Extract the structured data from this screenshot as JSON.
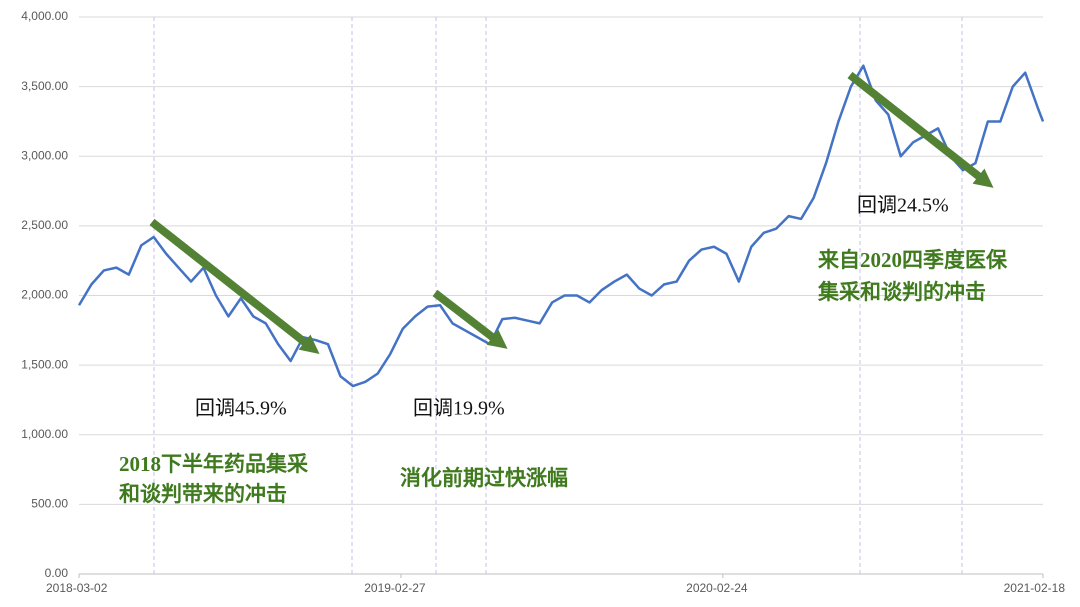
{
  "chart_data": {
    "type": "line",
    "color": "#4472c4",
    "grid": true,
    "xlim": [
      "2018-03-02",
      "2021-02-18"
    ],
    "xticks": [
      "2018-03-02",
      "2019-02-27",
      "2020-02-24",
      "2021-02-18"
    ],
    "ylim": [
      0,
      4000
    ],
    "yticks": [
      {
        "value": 0,
        "label": "0.00"
      },
      {
        "value": 500,
        "label": "500.00"
      },
      {
        "value": 1000,
        "label": "1,000.00"
      },
      {
        "value": 1500,
        "label": "1,500.00"
      },
      {
        "value": 2000,
        "label": "2,000.00"
      },
      {
        "value": 2500,
        "label": "2,500.00"
      },
      {
        "value": 3000,
        "label": "3,000.00"
      },
      {
        "value": 3500,
        "label": "3,500.00"
      },
      {
        "value": 4000,
        "label": "4,000.00"
      }
    ],
    "x": [
      "2018-03-02",
      "2018-03-16",
      "2018-03-30",
      "2018-04-13",
      "2018-04-27",
      "2018-05-11",
      "2018-05-25",
      "2018-06-08",
      "2018-06-22",
      "2018-07-06",
      "2018-07-20",
      "2018-08-03",
      "2018-08-17",
      "2018-08-31",
      "2018-09-14",
      "2018-09-28",
      "2018-10-12",
      "2018-10-26",
      "2018-11-09",
      "2018-11-23",
      "2018-12-07",
      "2018-12-21",
      "2019-01-04",
      "2019-01-18",
      "2019-02-01",
      "2019-02-15",
      "2019-03-01",
      "2019-03-15",
      "2019-03-29",
      "2019-04-12",
      "2019-04-26",
      "2019-05-10",
      "2019-05-24",
      "2019-06-07",
      "2019-06-21",
      "2019-07-05",
      "2019-07-19",
      "2019-08-02",
      "2019-08-16",
      "2019-08-30",
      "2019-09-13",
      "2019-09-27",
      "2019-10-11",
      "2019-10-25",
      "2019-11-08",
      "2019-11-22",
      "2019-12-06",
      "2019-12-20",
      "2020-01-03",
      "2020-01-17",
      "2020-01-31",
      "2020-02-14",
      "2020-02-28",
      "2020-03-13",
      "2020-03-27",
      "2020-04-10",
      "2020-04-24",
      "2020-05-08",
      "2020-05-22",
      "2020-06-05",
      "2020-06-19",
      "2020-07-03",
      "2020-07-17",
      "2020-07-31",
      "2020-08-14",
      "2020-08-28",
      "2020-09-11",
      "2020-09-25",
      "2020-10-09",
      "2020-10-23",
      "2020-11-06",
      "2020-11-20",
      "2020-12-04",
      "2020-12-18",
      "2021-01-01",
      "2021-01-15",
      "2021-01-29",
      "2021-02-12",
      "2021-02-18"
    ],
    "values": [
      1930,
      2080,
      2180,
      2200,
      2150,
      2360,
      2420,
      2300,
      2200,
      2100,
      2200,
      2000,
      1850,
      1980,
      1850,
      1800,
      1650,
      1530,
      1700,
      1680,
      1650,
      1420,
      1350,
      1380,
      1440,
      1580,
      1760,
      1850,
      1920,
      1930,
      1800,
      1750,
      1700,
      1650,
      1830,
      1840,
      1820,
      1800,
      1950,
      2000,
      2000,
      1950,
      2040,
      2100,
      2150,
      2050,
      2000,
      2080,
      2100,
      2250,
      2330,
      2350,
      2300,
      2100,
      2350,
      2450,
      2480,
      2570,
      2550,
      2700,
      2950,
      3250,
      3500,
      3650,
      3400,
      3300,
      3000,
      3100,
      3150,
      3200,
      3000,
      2900,
      2950,
      3250,
      3250,
      3500,
      3600,
      3350,
      3250
    ]
  },
  "annotations": {
    "pullback_1": "回调45.9%",
    "pullback_2": "回调19.9%",
    "pullback_3": "回调24.5%",
    "reason_1": [
      "2018下半年药品集采",
      "和谈判带来的冲击"
    ],
    "reason_2": "消化前期过快涨幅",
    "reason_3": [
      "来自2020四季度医保",
      "集采和谈判的冲击"
    ]
  }
}
